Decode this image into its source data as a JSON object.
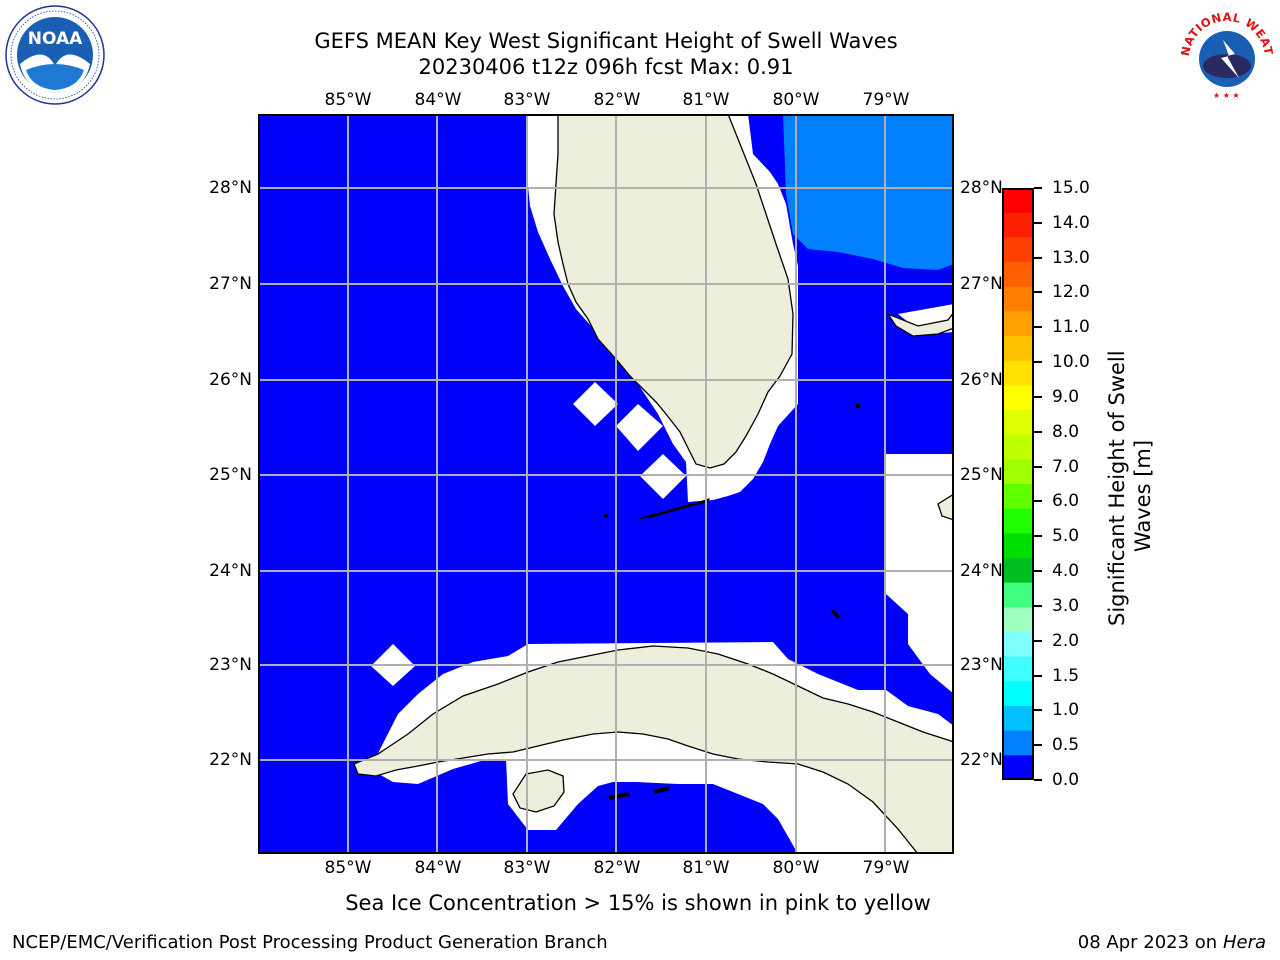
{
  "title": {
    "line1": "GEFS MEAN Key West Significant Height of Swell Waves",
    "line2": "20230406 t12z 096h fcst   Max: 0.91"
  },
  "map": {
    "lon_labels": [
      "85°W",
      "84°W",
      "83°W",
      "82°W",
      "81°W",
      "80°W",
      "79°W"
    ],
    "lat_labels": [
      "28°N",
      "27°N",
      "26°N",
      "25°N",
      "24°N",
      "23°N",
      "22°N"
    ],
    "ocean_color": "#0000ff",
    "elevated_swell_color": "#0080ff",
    "land_color": "#eeeedd",
    "grid_color": "#b0b0b0"
  },
  "colorbar": {
    "ticks": [
      "15.0",
      "14.0",
      "13.0",
      "12.0",
      "11.0",
      "10.0",
      "9.0",
      "8.0",
      "7.0",
      "6.0",
      "5.0",
      "4.0",
      "3.0",
      "2.0",
      "1.5",
      "1.0",
      "0.5",
      "0.0"
    ],
    "colors": [
      "#ff0000",
      "#ff2000",
      "#ff4000",
      "#ff6000",
      "#ff8000",
      "#ffa000",
      "#ffc000",
      "#ffe000",
      "#ffff00",
      "#e0ff00",
      "#c0ff00",
      "#a0ff00",
      "#60ff00",
      "#20ff00",
      "#00e000",
      "#00c020",
      "#40ff80",
      "#a0ffc0",
      "#80ffff",
      "#40ffff",
      "#00ffff",
      "#00c0ff",
      "#0080ff",
      "#0000ff"
    ],
    "label_line1": "Significant Height of Swell",
    "label_line2": "Waves [m]"
  },
  "note": "Sea Ice Concentration > 15% is shown in pink to yellow",
  "footer": {
    "left": "NCEP/EMC/Verification Post Processing Product Generation Branch",
    "date": "08 Apr 2023 on ",
    "host": "Hera"
  },
  "logos": {
    "left": "noaa-logo",
    "left_text": "NOAA",
    "right": "nws-logo",
    "right_text": "NATIONAL WEATHER SERVICE"
  }
}
